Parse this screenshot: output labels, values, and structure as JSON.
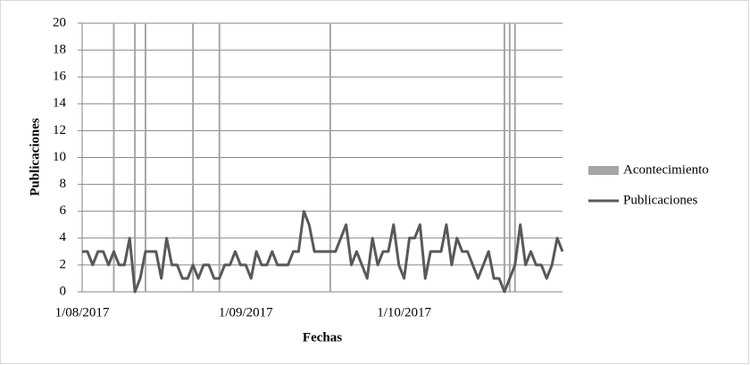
{
  "chart_data": {
    "type": "line",
    "x_label": "Fechas",
    "y_label": "Publicaciones",
    "categories": [
      "1/08/2017",
      null,
      null,
      null,
      null,
      null,
      null,
      null,
      null,
      null,
      null,
      null,
      null,
      null,
      null,
      null,
      null,
      null,
      null,
      null,
      null,
      null,
      null,
      null,
      null,
      null,
      null,
      null,
      null,
      null,
      null,
      "1/09/2017",
      null,
      null,
      null,
      null,
      null,
      null,
      null,
      null,
      null,
      null,
      null,
      null,
      null,
      null,
      null,
      null,
      null,
      null,
      null,
      null,
      null,
      null,
      null,
      null,
      null,
      null,
      null,
      null,
      null,
      "1/10/2017",
      null,
      null,
      null,
      null,
      null,
      null,
      null,
      null,
      null,
      null,
      null,
      null,
      null,
      null,
      null,
      null,
      null,
      null,
      null,
      null,
      null,
      null,
      null,
      null,
      null,
      null,
      null,
      null,
      null,
      null
    ],
    "series": [
      {
        "name": "Acontecimiento",
        "type": "bar",
        "color": "#a6a6a6",
        "values": [
          null,
          null,
          null,
          null,
          null,
          null,
          20,
          null,
          null,
          null,
          20,
          null,
          20,
          null,
          null,
          null,
          null,
          null,
          null,
          null,
          null,
          20,
          null,
          null,
          null,
          null,
          20,
          null,
          null,
          null,
          null,
          null,
          null,
          null,
          null,
          null,
          null,
          null,
          null,
          null,
          null,
          null,
          null,
          null,
          null,
          null,
          null,
          20,
          null,
          null,
          null,
          null,
          null,
          null,
          null,
          null,
          null,
          null,
          null,
          null,
          null,
          null,
          null,
          null,
          null,
          null,
          null,
          null,
          null,
          null,
          null,
          null,
          null,
          null,
          null,
          null,
          null,
          null,
          null,
          null,
          20,
          20,
          20,
          null,
          null,
          null,
          null,
          null,
          null,
          null,
          null,
          null
        ]
      },
      {
        "name": "Publicaciones",
        "type": "line",
        "color": "#595959",
        "values": [
          3,
          3,
          2,
          3,
          3,
          2,
          3,
          2,
          2,
          4,
          0,
          1,
          3,
          3,
          3,
          1,
          4,
          2,
          2,
          1,
          1,
          2,
          1,
          2,
          2,
          1,
          1,
          2,
          2,
          3,
          2,
          2,
          1,
          3,
          2,
          2,
          3,
          2,
          2,
          2,
          3,
          3,
          6,
          5,
          3,
          3,
          3,
          3,
          3,
          4,
          5,
          2,
          3,
          2,
          1,
          4,
          2,
          3,
          3,
          5,
          2,
          1,
          4,
          4,
          5,
          1,
          3,
          3,
          3,
          5,
          2,
          4,
          3,
          3,
          2,
          1,
          2,
          3,
          1,
          1,
          0,
          1,
          2,
          5,
          2,
          3,
          2,
          2,
          1,
          2,
          4,
          3
        ]
      }
    ],
    "ylim": [
      0,
      20
    ],
    "yticks": [
      0,
      2,
      4,
      6,
      8,
      10,
      12,
      14,
      16,
      18,
      20
    ],
    "grid": true,
    "legend": "right"
  }
}
